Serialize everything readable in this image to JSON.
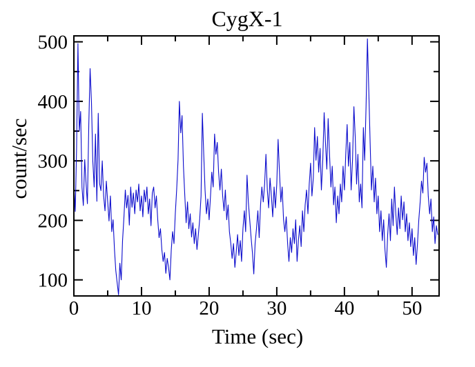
{
  "page": {
    "background": "#ffffff"
  },
  "chart_data": {
    "type": "line",
    "title": "CygX-1",
    "xlabel": "Time (sec)",
    "ylabel": "count/sec",
    "xlim": [
      0,
      54
    ],
    "ylim": [
      73,
      510
    ],
    "grid": false,
    "legend": "none",
    "frame": "box-with-inward-ticks",
    "x_major_ticks": [
      0,
      10,
      20,
      30,
      40,
      50
    ],
    "x_major_tick_labels": [
      "0",
      "10",
      "20",
      "30",
      "40",
      "50"
    ],
    "x_minor_ticks": [
      5,
      15,
      25,
      35,
      45
    ],
    "y_major_ticks": [
      100,
      200,
      300,
      400,
      500
    ],
    "y_major_tick_labels": [
      "100",
      "200",
      "300",
      "400",
      "500"
    ],
    "y_minor_ticks": [
      150,
      250,
      350,
      450
    ],
    "line_color": "#0a0acc",
    "frame_color": "#000000",
    "text_color": "#000000",
    "series": [
      {
        "name": "CygX-1 count rate",
        "x_start": 0,
        "x_step": 0.2,
        "n_points": 270,
        "y": [
          260,
          215,
          320,
          497,
          350,
          383,
          255,
          225,
          302,
          263,
          228,
          360,
          455,
          398,
          300,
          256,
          345,
          232,
          380,
          262,
          250,
          300,
          241,
          216,
          266,
          231,
          199,
          241,
          181,
          201,
          151,
          116,
          95,
          75,
          128,
          100,
          166,
          205,
          251,
          221,
          242,
          192,
          256,
          222,
          246,
          211,
          251,
          231,
          261,
          216,
          241,
          206,
          251,
          231,
          256,
          211,
          236,
          191,
          246,
          256,
          221,
          241,
          201,
          171,
          186,
          151,
          131,
          146,
          111,
          136,
          121,
          100,
          151,
          181,
          161,
          211,
          252,
          302,
          400,
          347,
          376,
          291,
          241,
          196,
          231,
          186,
          211,
          172,
          196,
          161,
          186,
          151,
          176,
          201,
          241,
          380,
          311,
          251,
          211,
          236,
          201,
          241,
          281,
          256,
          345,
          311,
          331,
          281,
          251,
          286,
          241,
          216,
          251,
          201,
          226,
          181,
          161,
          136,
          161,
          121,
          146,
          176,
          141,
          166,
          131,
          186,
          216,
          181,
          276,
          231,
          201,
          171,
          146,
          110,
          161,
          186,
          216,
          171,
          226,
          256,
          231,
          261,
          311,
          251,
          221,
          271,
          241,
          206,
          256,
          221,
          261,
          336,
          281,
          231,
          256,
          201,
          181,
          206,
          161,
          131,
          171,
          146,
          186,
          161,
          201,
          131,
          166,
          191,
          156,
          216,
          181,
          226,
          251,
          211,
          261,
          296,
          241,
          271,
          356,
          301,
          341,
          281,
          321,
          251,
          301,
          381,
          331,
          286,
          371,
          311,
          256,
          291,
          226,
          256,
          196,
          241,
          211,
          261,
          231,
          291,
          251,
          311,
          361,
          291,
          331,
          251,
          301,
          391,
          341,
          261,
          311,
          231,
          261,
          221,
          356,
          301,
          391,
          505,
          421,
          331,
          251,
          291,
          231,
          271,
          211,
          241,
          181,
          216,
          166,
          201,
          151,
          121,
          176,
          211,
          166,
          236,
          191,
          256,
          211,
          176,
          221,
          186,
          241,
          201,
          231,
          181,
          211,
          166,
          196,
          156,
          186,
          141,
          171,
          126,
          161,
          201,
          231,
          266,
          246,
          306,
          281,
          296,
          241,
          211,
          236,
          181,
          206,
          161,
          191,
          176
        ]
      }
    ]
  }
}
